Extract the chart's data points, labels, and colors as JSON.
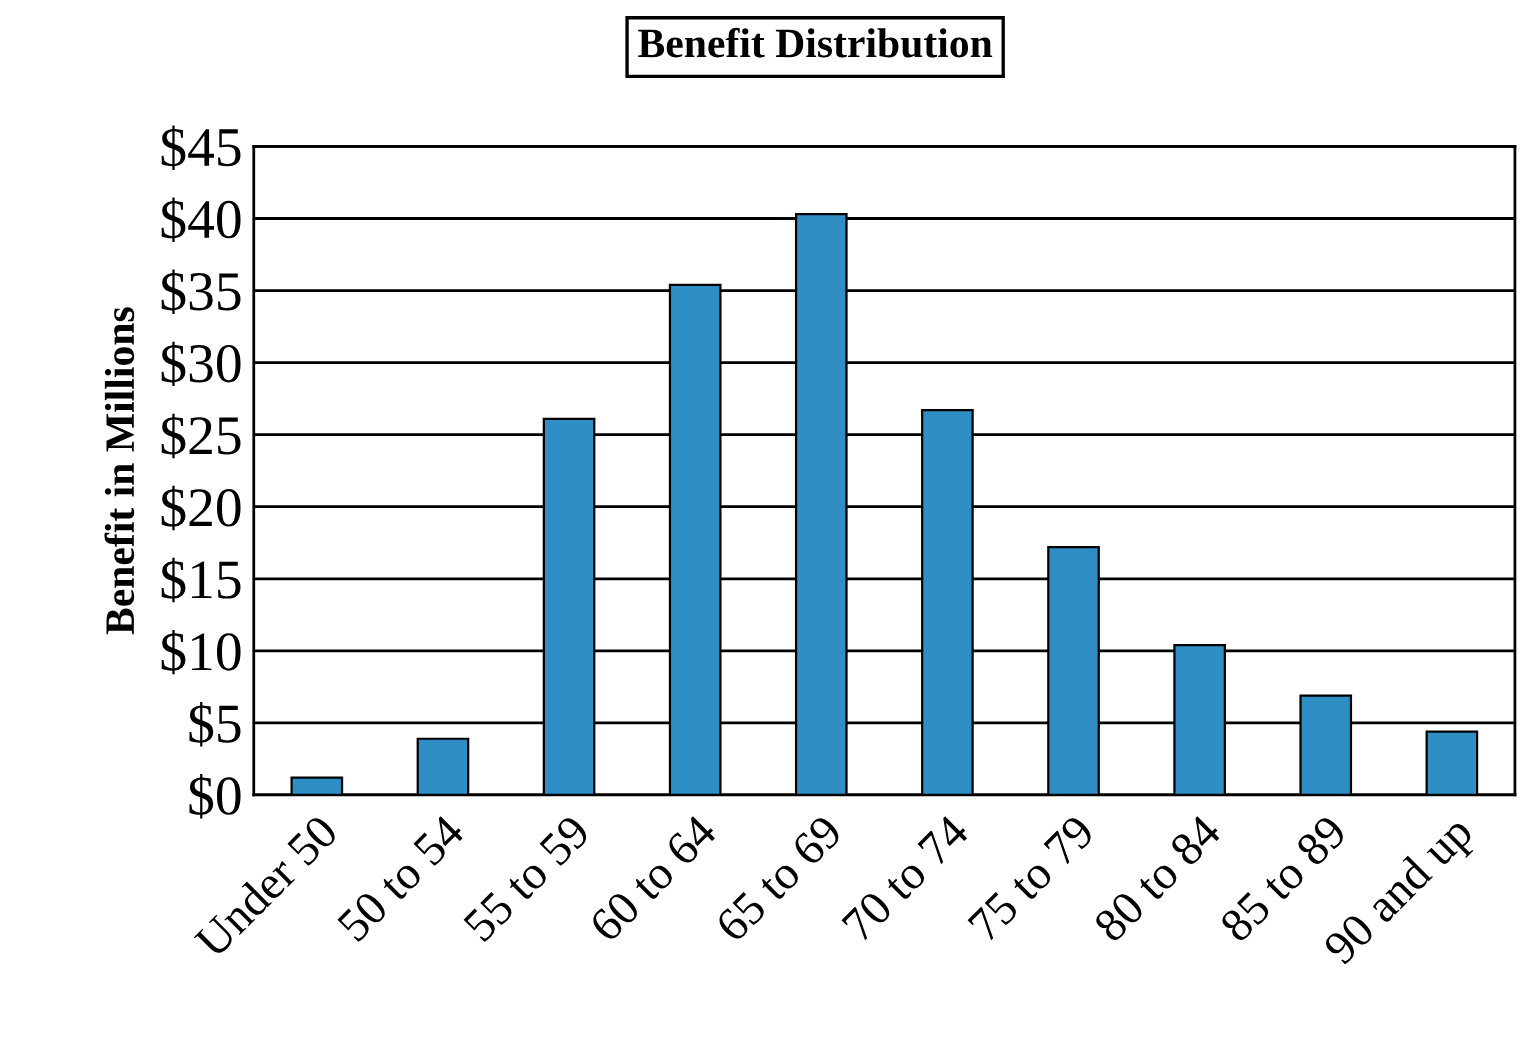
{
  "chart_data": {
    "type": "bar",
    "title": "Benefit Distribution",
    "ylabel": "Benefit in Millions",
    "categories": [
      "Under 50",
      "50 to 54",
      "55 to 59",
      "60 to 64",
      "65 to 69",
      "70 to 74",
      "75 to 79",
      "80 to 84",
      "85 to 89",
      "90 and up"
    ],
    "values": [
      1.2,
      3.9,
      26.1,
      35.4,
      40.3,
      26.7,
      17.2,
      10.4,
      6.9,
      4.4
    ],
    "color": "#2f8fc4",
    "ylim": [
      0,
      45
    ],
    "yticks": [
      {
        "value": 0,
        "label": "$0"
      },
      {
        "value": 5,
        "label": "$5"
      },
      {
        "value": 10,
        "label": "$10"
      },
      {
        "value": 15,
        "label": "$15"
      },
      {
        "value": 20,
        "label": "$20"
      },
      {
        "value": 25,
        "label": "$25"
      },
      {
        "value": 30,
        "label": "$30"
      },
      {
        "value": 35,
        "label": "$35"
      },
      {
        "value": 40,
        "label": "$40"
      },
      {
        "value": 45,
        "label": "$45"
      }
    ],
    "grid": "y"
  }
}
